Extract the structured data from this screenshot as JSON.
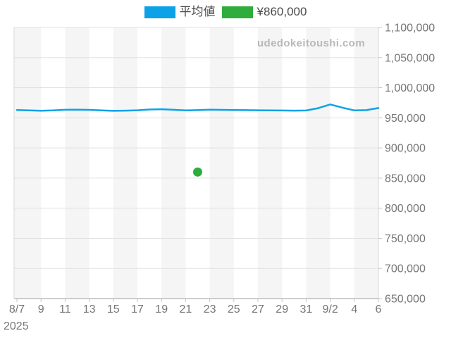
{
  "watermark": "udedokeitoushi.com",
  "chart_data": {
    "type": "line",
    "title": "",
    "xlabel": "",
    "ylabel": "",
    "legend_position": "top",
    "axis_side": "right",
    "grid": "horizontal gridlines, alternating vertical gray bands per 2-day interval",
    "colors": {
      "line": "#0da2e8",
      "point": "#2ead3c",
      "band": "#f5f5f5",
      "gridline": "#e1e1e1",
      "border": "#d6d6d6",
      "axis_line": "#bdbdbd",
      "tick": "#c4c4c4",
      "tick_label": "#757575"
    },
    "legend": [
      {
        "label": "平均値",
        "color": "#0da2e8"
      },
      {
        "label": "¥860,000",
        "color": "#2ead3c"
      }
    ],
    "ylim": [
      650000,
      1100000
    ],
    "y_ticks": [
      650000,
      700000,
      750000,
      800000,
      850000,
      900000,
      950000,
      1000000,
      1050000,
      1100000
    ],
    "y_tick_labels": [
      "650,000",
      "700,000",
      "750,000",
      "800,000",
      "850,000",
      "900,000",
      "950,000",
      "1,000,000",
      "1,050,000",
      "1,100,000"
    ],
    "x_tick_labels": [
      "8/7",
      "9",
      "11",
      "13",
      "15",
      "17",
      "19",
      "21",
      "23",
      "25",
      "27",
      "29",
      "31",
      "9/2",
      "4",
      "6"
    ],
    "year_label": "2025",
    "x_range_days": 31,
    "series": [
      {
        "name": "平均値",
        "color": "#0da2e8",
        "values": [
          963000,
          962400,
          961800,
          962300,
          963400,
          963600,
          963200,
          962300,
          961600,
          962000,
          962500,
          963800,
          964300,
          963400,
          962300,
          962800,
          963600,
          963300,
          963000,
          962800,
          962600,
          962400,
          962200,
          962000,
          962200,
          966000,
          972300,
          967000,
          962300,
          962800,
          966300
        ]
      }
    ],
    "point": {
      "label": "¥860,000",
      "value": 860000,
      "day_index": 15,
      "date": "8/22",
      "color": "#2ead3c"
    }
  }
}
